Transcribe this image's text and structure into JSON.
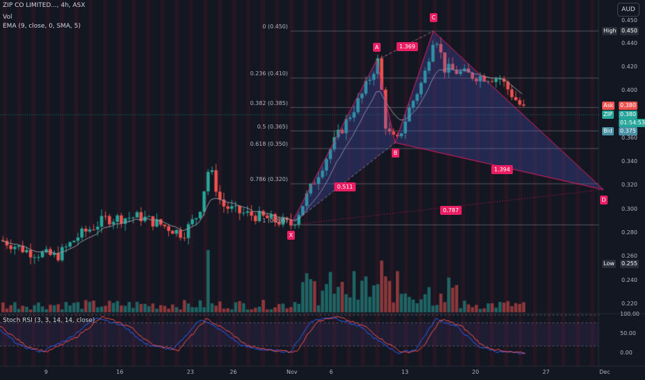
{
  "header": {
    "symbol": "ZIP CO LIMITED..., 4h, ASX",
    "vol": "Vol",
    "ema": "EMA (9, close, 0, SMA, 5)",
    "stoch": "Stoch RSI (3, 3, 14, 14, close)",
    "currency": "AUD"
  },
  "colors": {
    "bg": "#131722",
    "up": "#26a69a",
    "down": "#ef5350",
    "ema": "#9c9ea6",
    "pattern": "#e91e63",
    "pattern_fill": "rgba(80,90,200,0.28)",
    "k_line": "#2962ff",
    "d_line": "#ff5252"
  },
  "price_axis": {
    "ticks": [
      "0.450",
      "0.440",
      "0.420",
      "0.400",
      "0.380",
      "0.360",
      "0.340",
      "0.320",
      "0.300",
      "0.280",
      "0.260",
      "0.240",
      "0.220"
    ],
    "high_label": "High",
    "high_value": "0.450",
    "low_label": "Low",
    "low_value": "0.255",
    "ask_label": "Ask",
    "ask_value": "0.380",
    "last_label": "ZIP",
    "last_value": "0.380",
    "countdown": "01:54:53",
    "bid_label": "Bid",
    "bid_value": "0.375"
  },
  "stoch_axis": {
    "ticks": [
      "100.00",
      "50.00",
      "0.00"
    ]
  },
  "time_axis": {
    "ticks": [
      "9",
      "16",
      "23",
      "26",
      "Nov",
      "6",
      "13",
      "20",
      "27",
      "Dec"
    ]
  },
  "fib_levels": [
    {
      "label": "0 (0.450)",
      "value": 0.45
    },
    {
      "label": "0.236 (0.410)",
      "value": 0.41
    },
    {
      "label": "0.382 (0.385)",
      "value": 0.385
    },
    {
      "label": "0.5 (0.365)",
      "value": 0.365
    },
    {
      "label": "0.618 (0.350)",
      "value": 0.35
    },
    {
      "label": "0.786 (0.320)",
      "value": 0.32
    },
    {
      "label": "1 (0.285)",
      "value": 0.285
    }
  ],
  "pattern": {
    "points": [
      {
        "label": "X",
        "price": 0.285
      },
      {
        "label": "A",
        "price": 0.425
      },
      {
        "label": "B",
        "price": 0.355
      },
      {
        "label": "C",
        "price": 0.45
      },
      {
        "label": "D",
        "price": 0.315
      }
    ],
    "ratios": [
      "1.369",
      "0.511",
      "1.394",
      "0.787"
    ]
  }
}
